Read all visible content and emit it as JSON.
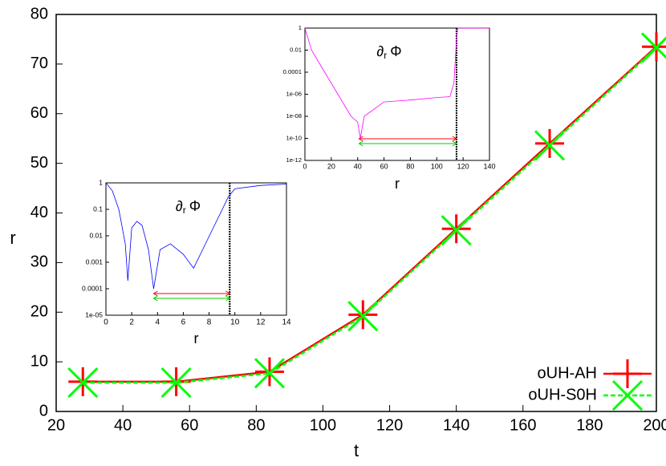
{
  "chart_data": [
    {
      "type": "line",
      "xlabel": "t",
      "ylabel": "r",
      "x": [
        28,
        56,
        84,
        112,
        140,
        168,
        200
      ],
      "series": [
        {
          "name": "oUH-AH",
          "color": "#ff0000",
          "values": [
            6,
            6,
            8,
            19.5,
            36.8,
            54,
            73.5
          ]
        },
        {
          "name": "oUH-S0H",
          "color": "#00ff00",
          "values": [
            5.8,
            5.8,
            7.7,
            19.2,
            36.5,
            53.6,
            73.3
          ]
        }
      ],
      "xlim": [
        20,
        200
      ],
      "xticks": [
        20,
        40,
        60,
        80,
        100,
        120,
        140,
        160,
        180,
        200
      ],
      "ylim": [
        0,
        80
      ],
      "yticks": [
        0,
        10,
        20,
        30,
        40,
        50,
        60,
        70,
        80
      ],
      "legend": "lower-right"
    },
    {
      "type": "line",
      "title": [
        "∂",
        "r",
        "Φ"
      ],
      "xlabel": "r",
      "log_y": true,
      "x": [
        0,
        0.5,
        1,
        1.5,
        1.7,
        2,
        2.4,
        2.8,
        3.3,
        3.7,
        4.2,
        5,
        6,
        6.8,
        7.5,
        8.5,
        9.5,
        10,
        12,
        14
      ],
      "series": [
        {
          "color": "#0000ff",
          "values": [
            1,
            0.5,
            0.1,
            0.005,
            0.0002,
            0.02,
            0.035,
            0.025,
            0.003,
            0.0001,
            0.003,
            0.005,
            0.002,
            0.0006,
            0.003,
            0.03,
            0.3,
            0.6,
            0.8,
            0.9
          ]
        }
      ],
      "vline": 9.6,
      "span": [
        3.7,
        9.6
      ],
      "xlim": [
        0,
        14
      ],
      "xticks": [
        0,
        2,
        4,
        6,
        8,
        10,
        12,
        14
      ],
      "ylim": [
        1e-05,
        1
      ],
      "yticks": [
        {
          "value": 1e-05,
          "label": "1e-05"
        },
        0.0001,
        0.001,
        0.01,
        0.1,
        1
      ]
    },
    {
      "type": "line",
      "title": [
        "∂",
        "r",
        "Φ"
      ],
      "xlabel": "r",
      "log_y": true,
      "x": [
        0,
        5,
        10,
        15,
        20,
        25,
        30,
        35,
        40,
        42,
        45,
        60,
        80,
        100,
        110,
        113,
        115,
        116,
        140
      ],
      "series": [
        {
          "color": "#ff00ff",
          "values": [
            1,
            0.01,
            0.001,
            0.0001,
            1e-05,
            1e-06,
            1e-07,
            1e-08,
            3e-09,
            1e-10,
            1e-08,
            2e-07,
            3e-07,
            5e-07,
            6e-07,
            1e-05,
            0.1,
            1,
            1
          ]
        }
      ],
      "vline": 115,
      "span": [
        41,
        115
      ],
      "xlim": [
        0,
        140
      ],
      "xticks": [
        0,
        20,
        40,
        60,
        80,
        100,
        120,
        140
      ],
      "ylim": [
        1e-12,
        1
      ],
      "yticks": [
        {
          "value": 1e-12,
          "label": "1e-12"
        },
        {
          "value": 1e-10,
          "label": "1e-10"
        },
        {
          "value": 1e-08,
          "label": "1e-08"
        },
        {
          "value": 1e-06,
          "label": "1e-06"
        },
        0.0001,
        0.01,
        1
      ]
    }
  ]
}
